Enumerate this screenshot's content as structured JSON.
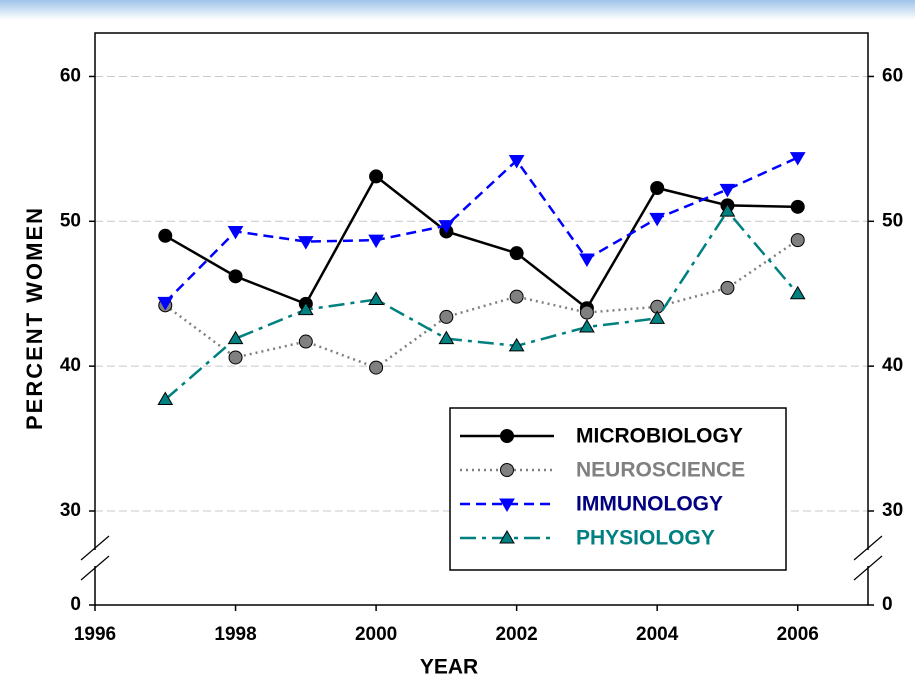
{
  "chart_data": {
    "type": "line",
    "x_label": "YEAR",
    "y_label": "PERCENT WOMEN",
    "x": [
      1997,
      1998,
      1999,
      2000,
      2001,
      2002,
      2003,
      2004,
      2005,
      2006
    ],
    "xlim": [
      1996,
      2007
    ],
    "xticks": [
      1996,
      1998,
      2000,
      2002,
      2004,
      2006
    ],
    "ylim": [
      0,
      63
    ],
    "axis_break": [
      0,
      30
    ],
    "yticks": [
      0,
      30,
      40,
      50,
      60
    ],
    "grid": true,
    "legend": "lower right",
    "series": [
      {
        "name": "MICROBIOLOGY",
        "color": "#000000",
        "text_color": "#000000",
        "dash": "solid",
        "marker": "circle",
        "values": [
          49.0,
          46.2,
          44.3,
          53.1,
          49.3,
          47.8,
          44.0,
          52.3,
          51.1,
          51.0
        ]
      },
      {
        "name": "NEUROSCIENCE",
        "color": "#808080",
        "text_color": "#808080",
        "dash": "dotted",
        "marker": "circle",
        "values": [
          44.2,
          40.6,
          41.7,
          39.9,
          43.4,
          44.8,
          43.7,
          44.1,
          45.4,
          48.7
        ]
      },
      {
        "name": "IMMUNOLOGY",
        "color": "#0000ff",
        "text_color": "#000080",
        "dash": "dashed",
        "marker": "triangle-down",
        "values": [
          44.4,
          49.3,
          48.6,
          48.7,
          49.7,
          54.2,
          47.4,
          50.2,
          52.2,
          54.4
        ]
      },
      {
        "name": "PHYSIOLOGY",
        "color": "#008080",
        "text_color": "#008080",
        "dash": "dashdot",
        "marker": "triangle-up",
        "values": [
          37.7,
          41.9,
          43.9,
          44.6,
          41.9,
          41.4,
          42.7,
          43.3,
          50.7,
          45.0
        ]
      }
    ]
  }
}
